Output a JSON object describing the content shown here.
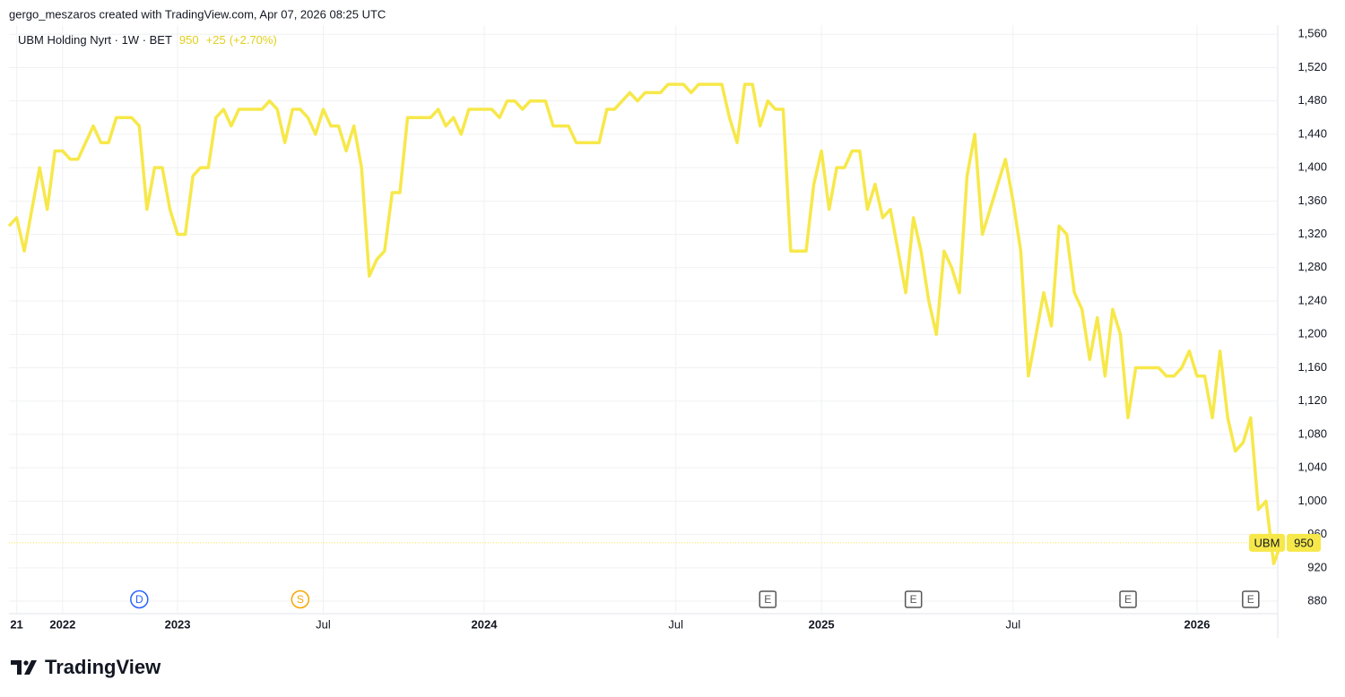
{
  "header": {
    "credit": "gergo_meszaros created with TradingView.com, Apr 07, 2026 08:25 UTC"
  },
  "footer": {
    "brand": "TradingView"
  },
  "chart_data": {
    "type": "line",
    "legend": {
      "symbol": "UBM Holding Nyrt · 1W · BET",
      "change": "+25",
      "change_percent": "(+2.70%)"
    },
    "series": [
      {
        "name": "UBM",
        "color": "#f7e84a",
        "values": [
          1330,
          1340,
          1300,
          1350,
          1400,
          1350,
          1420,
          1420,
          1410,
          1410,
          1430,
          1450,
          1430,
          1430,
          1460,
          1460,
          1460,
          1450,
          1350,
          1400,
          1400,
          1350,
          1320,
          1320,
          1390,
          1400,
          1400,
          1460,
          1470,
          1450,
          1470,
          1470,
          1470,
          1470,
          1480,
          1470,
          1430,
          1470,
          1470,
          1460,
          1440,
          1470,
          1450,
          1450,
          1420,
          1450,
          1400,
          1270,
          1290,
          1300,
          1370,
          1370,
          1460,
          1460,
          1460,
          1460,
          1470,
          1450,
          1460,
          1440,
          1470,
          1470,
          1470,
          1470,
          1460,
          1480,
          1480,
          1470,
          1480,
          1480,
          1480,
          1450,
          1450,
          1450,
          1430,
          1430,
          1430,
          1430,
          1470,
          1470,
          1480,
          1490,
          1480,
          1490,
          1490,
          1490,
          1500,
          1500,
          1500,
          1490,
          1500,
          1500,
          1500,
          1500,
          1460,
          1430,
          1500,
          1500,
          1450,
          1480,
          1470,
          1470,
          1300,
          1300,
          1300,
          1380,
          1420,
          1350,
          1400,
          1400,
          1420,
          1420,
          1350,
          1380,
          1340,
          1350,
          1300,
          1250,
          1340,
          1300,
          1240,
          1200,
          1300,
          1280,
          1250,
          1390,
          1440,
          1320,
          1350,
          1380,
          1410,
          1360,
          1300,
          1150,
          1200,
          1250,
          1210,
          1330,
          1320,
          1250,
          1230,
          1170,
          1220,
          1150,
          1230,
          1200,
          1100,
          1160,
          1160,
          1160,
          1160,
          1150,
          1150,
          1160,
          1180,
          1150,
          1150,
          1100,
          1180,
          1100,
          1060,
          1070,
          1100,
          990,
          1000,
          925,
          950
        ]
      }
    ],
    "xlim": [
      0,
      166
    ],
    "xticks": [
      {
        "value": 1,
        "label": "21"
      },
      {
        "value": 7,
        "label": "2022"
      },
      {
        "value": 22,
        "label": "2023"
      },
      {
        "value": 41,
        "label": "Jul"
      },
      {
        "value": 62,
        "label": "2024"
      },
      {
        "value": 87,
        "label": "Jul"
      },
      {
        "value": 106,
        "label": "2025"
      },
      {
        "value": 131,
        "label": "Jul"
      },
      {
        "value": 155,
        "label": "2026"
      }
    ],
    "ylim": [
      865,
      1571
    ],
    "yticks": [
      880,
      920,
      960,
      {
        "value": 1000,
        "label": "1,000"
      },
      {
        "value": 1040,
        "label": "1,040"
      },
      {
        "value": 1080,
        "label": "1,080"
      },
      {
        "value": 1120,
        "label": "1,120"
      },
      {
        "value": 1160,
        "label": "1,160"
      },
      {
        "value": 1200,
        "label": "1,200"
      },
      {
        "value": 1240,
        "label": "1,240"
      },
      {
        "value": 1280,
        "label": "1,280"
      },
      {
        "value": 1320,
        "label": "1,320"
      },
      {
        "value": 1360,
        "label": "1,360"
      },
      {
        "value": 1400,
        "label": "1,400"
      },
      {
        "value": 1440,
        "label": "1,440"
      },
      {
        "value": 1480,
        "label": "1,480"
      },
      {
        "value": 1520,
        "label": "1,520"
      },
      {
        "value": 1560,
        "label": "1,560"
      }
    ],
    "grid": true,
    "events": [
      {
        "label": "D",
        "x": 17,
        "color": "#2962ff"
      },
      {
        "label": "S",
        "x": 38,
        "color": "#f7a600"
      },
      {
        "label": "E",
        "x": 99,
        "color": "#555"
      },
      {
        "label": "E",
        "x": 118,
        "color": "#555"
      },
      {
        "label": "E",
        "x": 146,
        "color": "#555"
      },
      {
        "label": "E",
        "x": 162,
        "color": "#555"
      }
    ]
  }
}
